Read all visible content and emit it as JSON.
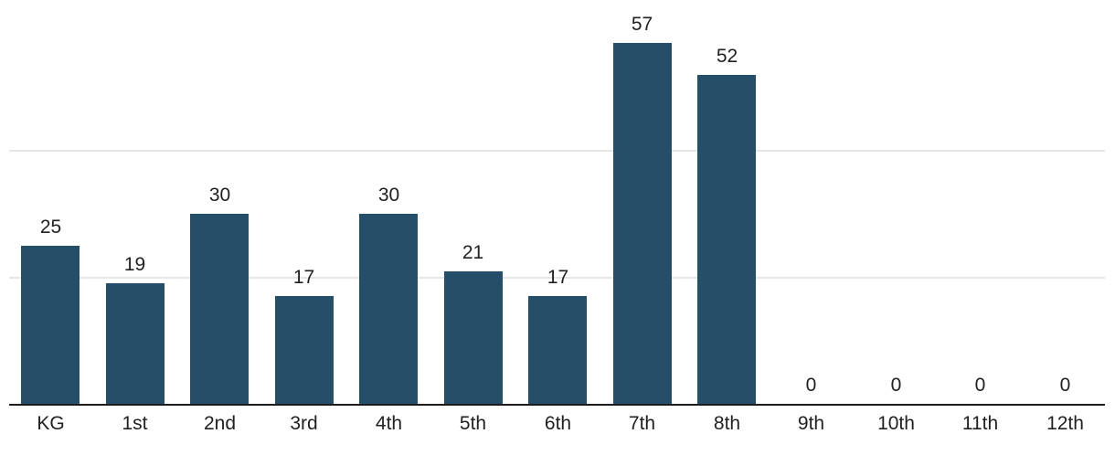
{
  "chart_data": {
    "type": "bar",
    "categories": [
      "KG",
      "1st",
      "2nd",
      "3rd",
      "4th",
      "5th",
      "6th",
      "7th",
      "8th",
      "9th",
      "10th",
      "11th",
      "12th"
    ],
    "values": [
      25,
      19,
      30,
      17,
      30,
      21,
      17,
      57,
      52,
      0,
      0,
      0,
      0
    ],
    "title": "",
    "xlabel": "",
    "ylabel": "",
    "ylim": [
      0,
      63
    ],
    "gridline_values": [
      20,
      40
    ],
    "grid": true,
    "legend": false,
    "value_labels_shown": true,
    "colors": {
      "bar": "#254F68",
      "axis": "#1C1C1C",
      "gridline": "#E6E6E6",
      "label": "#212121"
    }
  }
}
